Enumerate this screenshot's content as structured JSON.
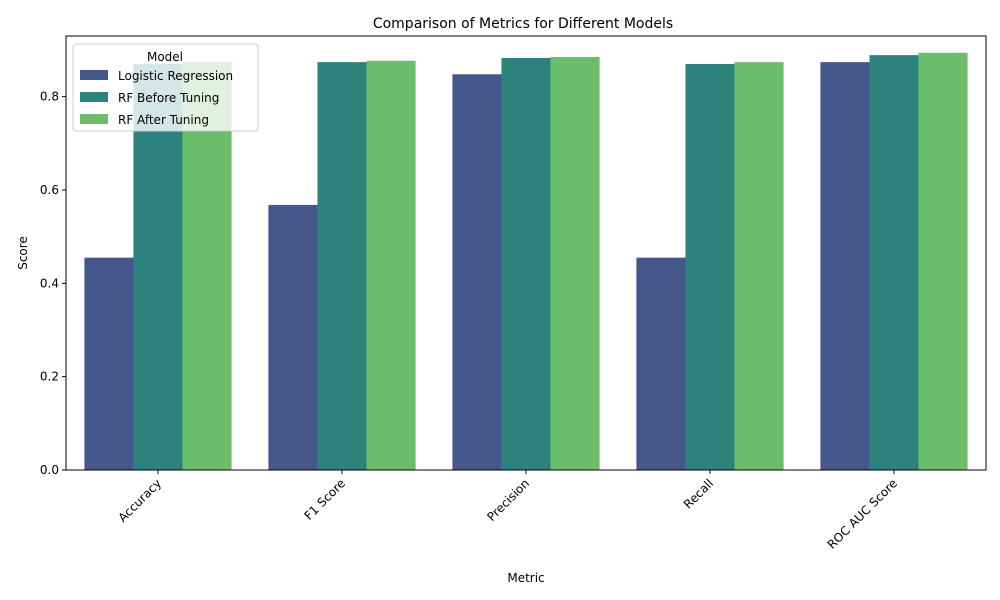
{
  "chart_data": {
    "type": "bar",
    "title": "Comparison of Metrics for Different Models",
    "xlabel": "Metric",
    "ylabel": "Score",
    "categories": [
      "Accuracy",
      "F1 Score",
      "Precision",
      "Recall",
      "ROC AUC Score"
    ],
    "series": [
      {
        "name": "Logistic Regression",
        "color": "#45568a",
        "values": [
          0.455,
          0.568,
          0.848,
          0.455,
          0.874
        ]
      },
      {
        "name": "RF Before Tuning",
        "color": "#2c837d",
        "values": [
          0.87,
          0.874,
          0.883,
          0.87,
          0.889
        ]
      },
      {
        "name": "RF After Tuning",
        "color": "#6bbd6c",
        "values": [
          0.874,
          0.877,
          0.885,
          0.874,
          0.894
        ]
      }
    ],
    "ylim": [
      0,
      0.93
    ],
    "yticks": [
      0.0,
      0.2,
      0.4,
      0.6,
      0.8
    ],
    "ytick_labels": [
      "0.0",
      "0.2",
      "0.4",
      "0.6",
      "0.8"
    ],
    "legend": {
      "title": "Model",
      "placement": "top-left"
    },
    "grid": false
  }
}
